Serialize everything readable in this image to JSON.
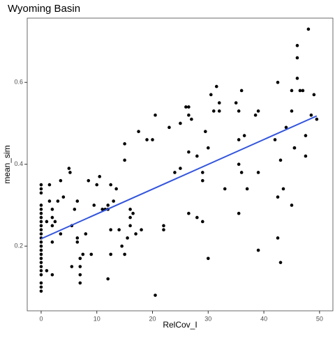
{
  "chart_data": {
    "type": "scatter",
    "title": "Wyoming Basin",
    "x_label": "RelCov_I",
    "y_label": "mean_sim",
    "xlim": [
      -2.5,
      52.4
    ],
    "ylim": [
      0.042,
      0.757
    ],
    "xticks": [
      0,
      10,
      20,
      30,
      40,
      50
    ],
    "yticks": [
      0.2,
      0.4,
      0.6
    ],
    "grid": false,
    "color": "#000000",
    "x": [
      0,
      0,
      0,
      0,
      0,
      0,
      0,
      0,
      0,
      0,
      0,
      0,
      0,
      0,
      0,
      0,
      0,
      0,
      0,
      0,
      0,
      0,
      0,
      0,
      1,
      1,
      1.5,
      1.5,
      2,
      2,
      2,
      2,
      2,
      2.5,
      3,
      3.5,
      3.5,
      4,
      5,
      5.2,
      5.5,
      6,
      6.5,
      6.5,
      6.5,
      5.5,
      7,
      7,
      7,
      7,
      7.5,
      8,
      8.5,
      9,
      9.5,
      10,
      10.5,
      11,
      11.5,
      12,
      12,
      12,
      12.5,
      12.5,
      12.5,
      13,
      13.5,
      14,
      14.5,
      15,
      15,
      15,
      15.5,
      16,
      16,
      16,
      16.5,
      17,
      17.5,
      18,
      19,
      20,
      20.5,
      20.5,
      22,
      22,
      23,
      24,
      25,
      25,
      26,
      26.5,
      26.5,
      26.5,
      26.5,
      27,
      28,
      28,
      29,
      29,
      29,
      29.5,
      30,
      30,
      30.5,
      31,
      31.5,
      32,
      32,
      33,
      35,
      35.5,
      35.5,
      35.5,
      35.5,
      36,
      36,
      36.5,
      37,
      38.5,
      39,
      39,
      39,
      42,
      42.5,
      42.5,
      42.5,
      43,
      43,
      43.5,
      44,
      45,
      45,
      45,
      45.5,
      45.5,
      46,
      46,
      46,
      46.5,
      47,
      47.5,
      47.5,
      48,
      48.5,
      49,
      49.5
    ],
    "values": [
      0.35,
      0.34,
      0.33,
      0.3,
      0.29,
      0.28,
      0.27,
      0.26,
      0.25,
      0.24,
      0.23,
      0.22,
      0.21,
      0.2,
      0.19,
      0.18,
      0.17,
      0.16,
      0.15,
      0.14,
      0.13,
      0.11,
      0.1,
      0.09,
      0.26,
      0.14,
      0.35,
      0.31,
      0.29,
      0.27,
      0.25,
      0.21,
      0.13,
      0.26,
      0.31,
      0.36,
      0.23,
      0.32,
      0.39,
      0.38,
      0.25,
      0.29,
      0.31,
      0.21,
      0.22,
      0.15,
      0.17,
      0.15,
      0.13,
      0.11,
      0.18,
      0.23,
      0.36,
      0.18,
      0.3,
      0.35,
      0.37,
      0.29,
      0.29,
      0.3,
      0.12,
      0.29,
      0.35,
      0.24,
      0.18,
      0.31,
      0.34,
      0.24,
      0.2,
      0.41,
      0.45,
      0.18,
      0.22,
      0.29,
      0.27,
      0.25,
      0.28,
      0.23,
      0.48,
      0.24,
      0.46,
      0.46,
      0.52,
      0.08,
      0.24,
      0.25,
      0.49,
      0.38,
      0.39,
      0.5,
      0.54,
      0.54,
      0.52,
      0.43,
      0.28,
      0.51,
      0.42,
      0.27,
      0.36,
      0.38,
      0.26,
      0.48,
      0.44,
      0.17,
      0.57,
      0.53,
      0.59,
      0.55,
      0.53,
      0.34,
      0.55,
      0.53,
      0.46,
      0.4,
      0.28,
      0.58,
      0.38,
      0.47,
      0.34,
      0.52,
      0.53,
      0.38,
      0.19,
      0.46,
      0.6,
      0.32,
      0.22,
      0.41,
      0.16,
      0.34,
      0.49,
      0.58,
      0.53,
      0.3,
      0.44,
      0.44,
      0.61,
      0.66,
      0.69,
      0.58,
      0.58,
      0.47,
      0.42,
      0.73,
      0.52,
      0.57,
      0.51
    ],
    "trend_line": {
      "color": "#3355dd",
      "x": [
        0,
        49.5
      ],
      "values": [
        0.218,
        0.518
      ]
    }
  }
}
